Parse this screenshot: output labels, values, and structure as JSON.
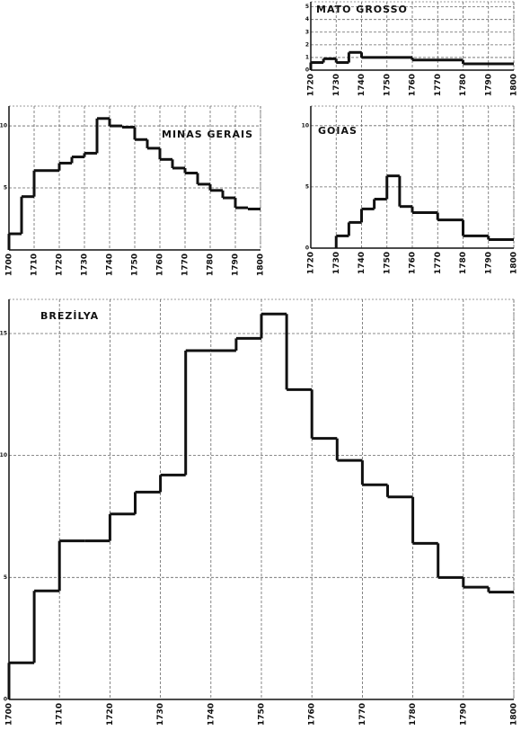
{
  "chart_data": [
    {
      "type": "histogram",
      "title": "MATO GROSSO",
      "bins": [
        1720,
        1725,
        1730,
        1735,
        1740,
        1760,
        1780,
        1800
      ],
      "values": [
        0.6,
        0.9,
        0.6,
        1.4,
        1.0,
        0.8,
        0.5
      ],
      "color": "#111111",
      "xlim": [
        1720,
        1800
      ],
      "ylim": [
        0,
        5.4
      ],
      "xticks": [
        1720,
        1730,
        1740,
        1750,
        1760,
        1770,
        1780,
        1790,
        1800
      ],
      "yticks": [
        0,
        1,
        2,
        3,
        4,
        5
      ],
      "grid": true
    },
    {
      "type": "histogram",
      "title": "MINAS GERAIS",
      "bins": [
        1700,
        1705,
        1710,
        1715,
        1720,
        1725,
        1730,
        1735,
        1740,
        1745,
        1750,
        1755,
        1760,
        1765,
        1770,
        1775,
        1780,
        1785,
        1790,
        1795,
        1800
      ],
      "values": [
        1.3,
        4.3,
        6.4,
        6.4,
        7.0,
        7.5,
        7.8,
        10.6,
        10.0,
        9.9,
        8.9,
        8.2,
        7.3,
        6.6,
        6.2,
        5.3,
        4.8,
        4.2,
        3.4,
        3.3
      ],
      "color": "#111111",
      "xlim": [
        1700,
        1800
      ],
      "ylim": [
        0,
        11.6
      ],
      "xticks": [
        1700,
        1710,
        1720,
        1730,
        1740,
        1750,
        1760,
        1770,
        1780,
        1790,
        1800
      ],
      "yticks": [
        5,
        10
      ],
      "grid": true
    },
    {
      "type": "histogram",
      "title": "GOIAS",
      "bins": [
        1730,
        1735,
        1740,
        1745,
        1750,
        1755,
        1760,
        1770,
        1780,
        1790,
        1800
      ],
      "values": [
        1.0,
        2.1,
        3.2,
        4.0,
        5.9,
        3.4,
        2.9,
        2.3,
        1.0,
        0.7
      ],
      "color": "#111111",
      "xlim": [
        1720,
        1800
      ],
      "ylim": [
        0,
        11.6
      ],
      "xticks": [
        1720,
        1730,
        1740,
        1750,
        1760,
        1770,
        1780,
        1790,
        1800
      ],
      "yticks": [
        0,
        5,
        10
      ],
      "grid": true
    },
    {
      "type": "histogram",
      "title": "BREZİLYA",
      "bins": [
        1700,
        1705,
        1710,
        1715,
        1720,
        1725,
        1730,
        1735,
        1740,
        1745,
        1750,
        1755,
        1760,
        1765,
        1770,
        1775,
        1780,
        1785,
        1790,
        1795,
        1800
      ],
      "values": [
        1.5,
        4.45,
        6.5,
        6.5,
        7.6,
        8.5,
        9.2,
        14.3,
        14.3,
        14.8,
        15.8,
        12.7,
        10.7,
        9.8,
        8.8,
        8.3,
        6.4,
        5.0,
        4.6,
        4.4
      ],
      "color": "#111111",
      "xlim": [
        1700,
        1800
      ],
      "ylim": [
        0,
        16.4
      ],
      "xticks": [
        1700,
        1710,
        1720,
        1730,
        1740,
        1750,
        1760,
        1770,
        1780,
        1790,
        1800
      ],
      "yticks": [
        0,
        5,
        10,
        15
      ],
      "grid": true
    }
  ]
}
